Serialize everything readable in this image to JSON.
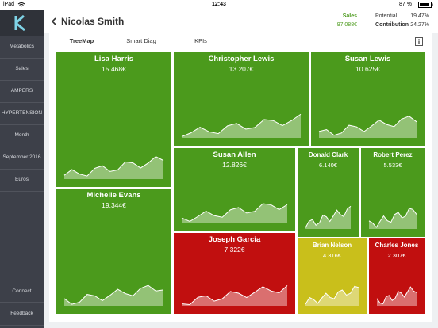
{
  "status_bar": {
    "device": "iPad",
    "time": "12:43",
    "battery": "87 %"
  },
  "sidebar": {
    "items": [
      "Metabolics",
      "Sales",
      "AMPERS",
      "HYPERTENSION",
      "Month",
      "September 2016",
      "Euros"
    ],
    "footer": [
      "Connect",
      "Feedback"
    ]
  },
  "header": {
    "title": "Nicolas Smith",
    "sales_label": "Sales",
    "sales_value": "97.088€",
    "potential_label": "Potential",
    "potential_value": "19.47%",
    "contribution_label": "Contribution",
    "contribution_value": "24.27%"
  },
  "tabs": [
    "TreeMap",
    "Smart Diag",
    "KPIs"
  ],
  "treemap": {
    "tiles": [
      {
        "name": "Lisa Harris",
        "value": "15.468€",
        "color": "#4b9a1c"
      },
      {
        "name": "Michelle Evans",
        "value": "19.344€",
        "color": "#4b9a1c"
      },
      {
        "name": "Christopher Lewis",
        "value": "13.207€",
        "color": "#4b9a1c"
      },
      {
        "name": "Susan Lewis",
        "value": "10.625€",
        "color": "#4b9a1c"
      },
      {
        "name": "Susan Allen",
        "value": "12.826€",
        "color": "#4b9a1c"
      },
      {
        "name": "Donald Clark",
        "value": "6.140€",
        "color": "#4b9a1c"
      },
      {
        "name": "Robert Perez",
        "value": "5.533€",
        "color": "#4b9a1c"
      },
      {
        "name": "Joseph Garcia",
        "value": "7.322€",
        "color": "#c10f0f"
      },
      {
        "name": "Brian Nelson",
        "value": "4.316€",
        "color": "#c9bf1b"
      },
      {
        "name": "Charles Jones",
        "value": "2.307€",
        "color": "#c10f0f"
      }
    ]
  }
}
